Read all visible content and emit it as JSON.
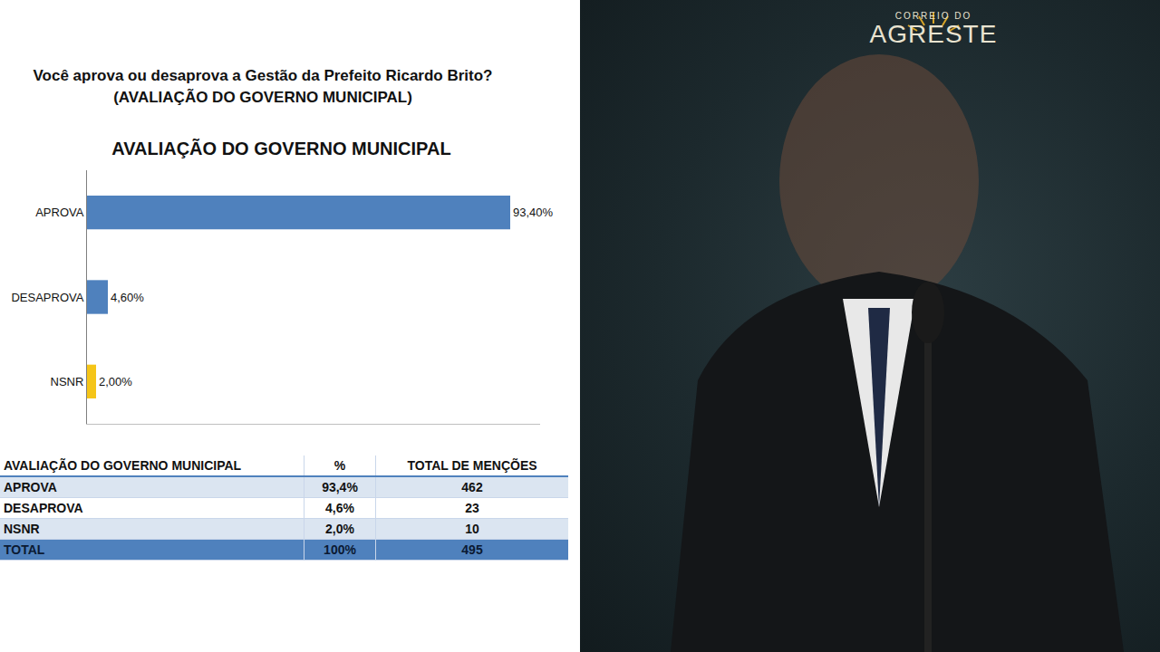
{
  "question": {
    "line1": "Você aprova ou desaprova a Gestão da Prefeito Ricardo Brito?",
    "line2": "(AVALIAÇÃO DO GOVERNO MUNICIPAL)"
  },
  "chart_data": {
    "type": "bar",
    "orientation": "horizontal",
    "title": "AVALIAÇÃO DO GOVERNO MUNICIPAL",
    "categories": [
      "APROVA",
      "DESAPROVA",
      "NSNR"
    ],
    "values": [
      93.4,
      4.6,
      2.0
    ],
    "value_labels": [
      "93,40%",
      "4,60%",
      "2,00%"
    ],
    "colors": [
      "#4f81bd",
      "#4f81bd",
      "#f5c518"
    ],
    "xlim": [
      0,
      100
    ],
    "data_labels": true,
    "tick_labels": "y",
    "grid": false
  },
  "table": {
    "header": [
      "AVALIAÇÃO DO GOVERNO MUNICIPAL",
      "%",
      "TOTAL DE MENÇÕES"
    ],
    "rows": [
      [
        "APROVA",
        "93,4%",
        462
      ],
      [
        "DESAPROVA",
        "4,6%",
        23
      ],
      [
        "NSNR",
        "2,0%",
        10
      ],
      [
        "TOTAL",
        "100%",
        495
      ]
    ]
  },
  "logo": {
    "line1": "CORREIO DO",
    "line2": "AGRESTE"
  }
}
